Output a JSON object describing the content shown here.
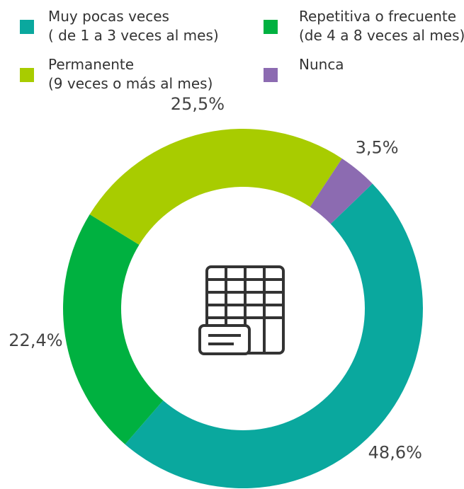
{
  "chart_data": {
    "type": "donut",
    "categories": [
      "Muy pocas veces\n( de 1 a 3 veces al mes)",
      "Repetitiva o frecuente\n(de 4 a 8 veces al mes)",
      "Permanente\n(9 veces o más al mes)",
      "Nunca"
    ],
    "values": [
      48.6,
      22.4,
      25.5,
      3.5
    ],
    "value_labels": [
      "48,6%",
      "22,4%",
      "25,5%",
      "3,5%"
    ],
    "colors": [
      "#0aa89e",
      "#00b140",
      "#a8cc00",
      "#8c6bb1"
    ]
  }
}
